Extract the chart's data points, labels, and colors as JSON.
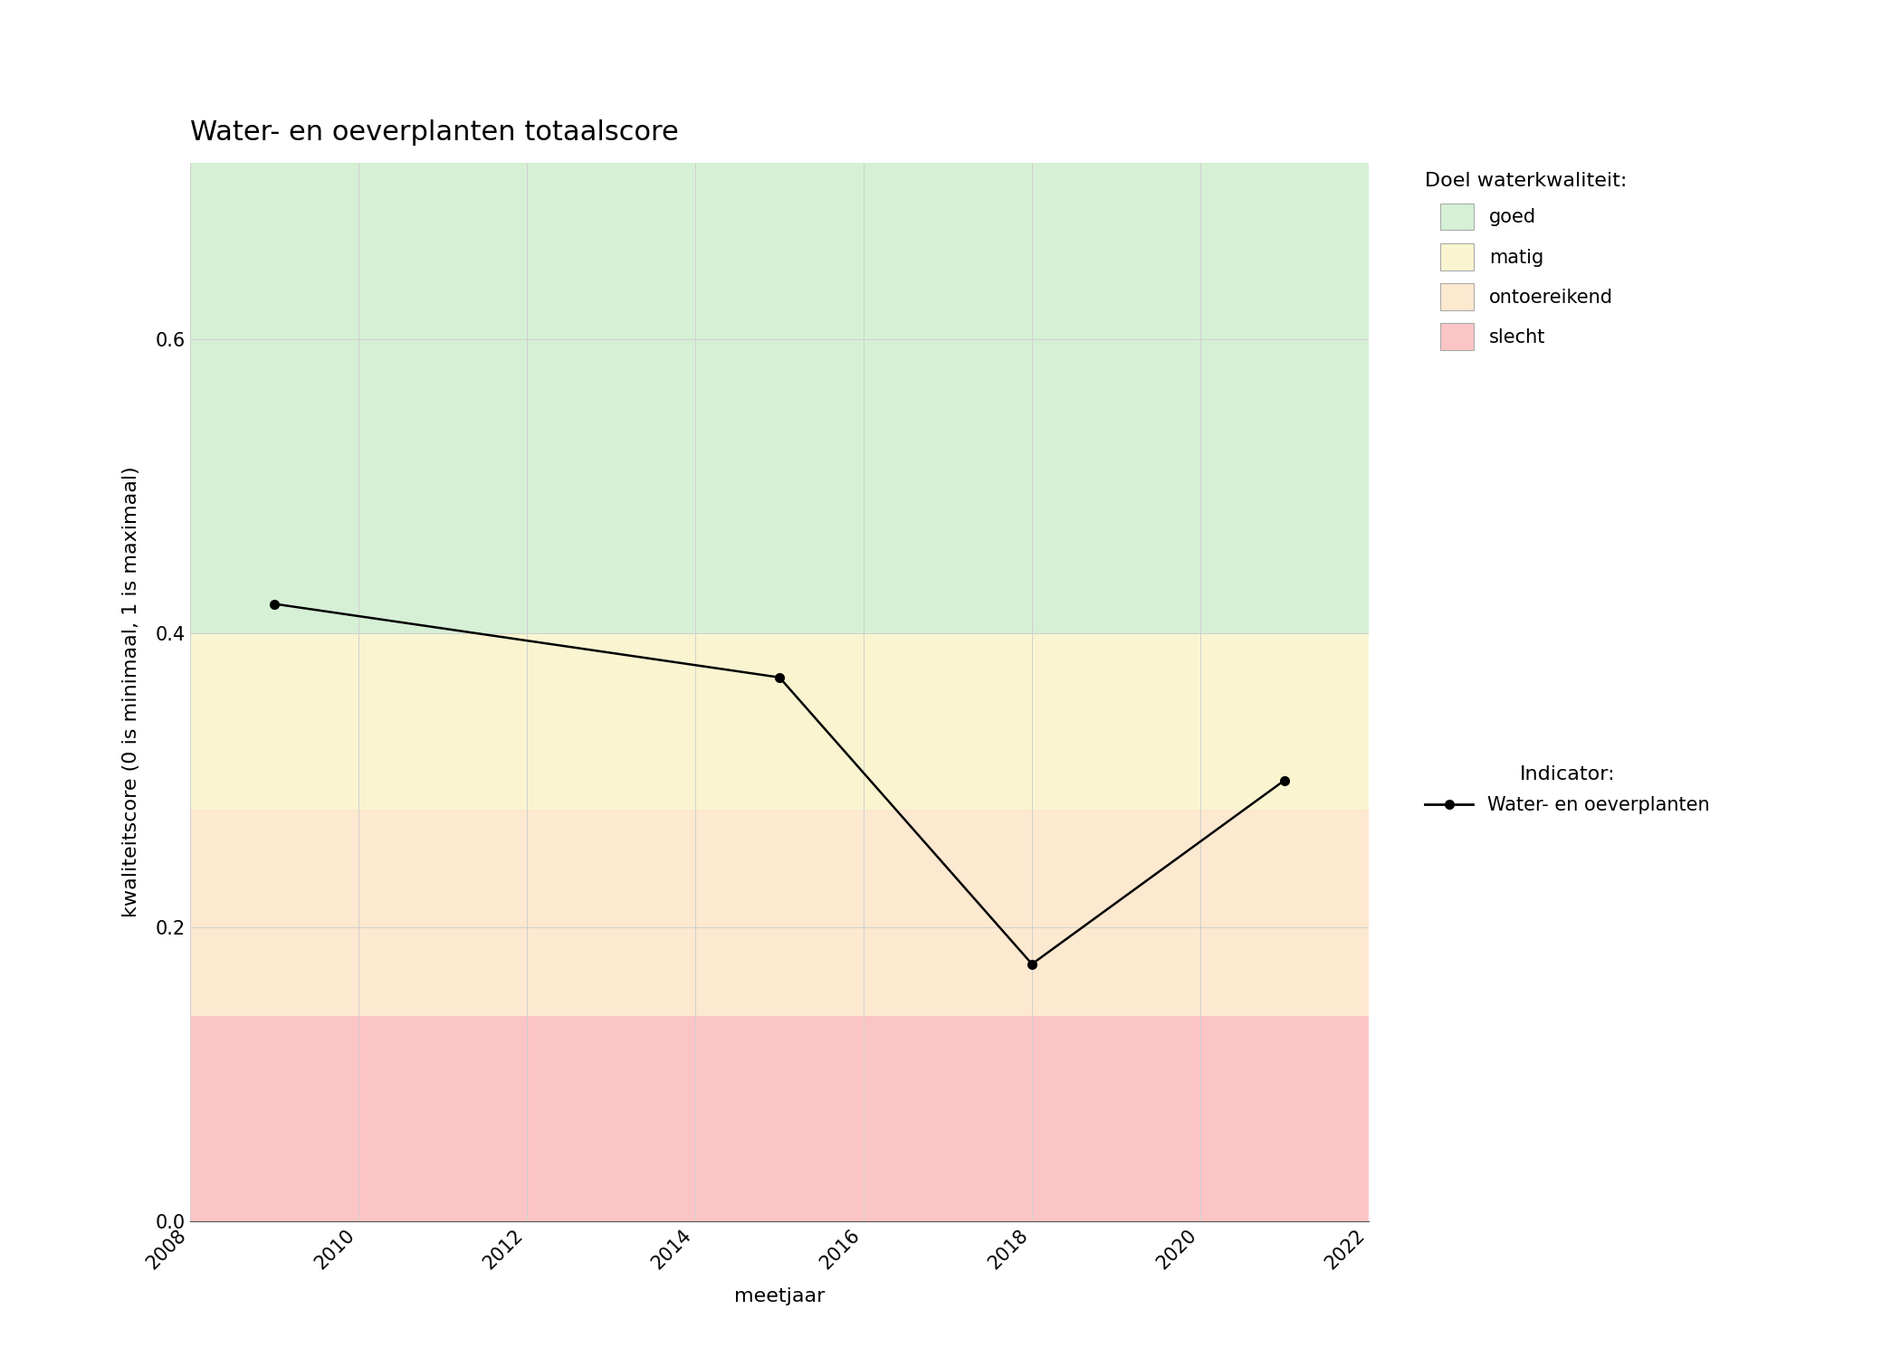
{
  "title": "Water- en oeverplanten totaalscore",
  "xlabel": "meetjaar",
  "ylabel": "kwaliteitscore (0 is minimaal, 1 is maximaal)",
  "xlim": [
    2008,
    2022
  ],
  "ylim": [
    0.0,
    0.72
  ],
  "xticks": [
    2008,
    2010,
    2012,
    2014,
    2016,
    2018,
    2020,
    2022
  ],
  "yticks": [
    0.0,
    0.2,
    0.4,
    0.6
  ],
  "years": [
    2009,
    2015,
    2018,
    2021
  ],
  "values": [
    0.42,
    0.37,
    0.175,
    0.3
  ],
  "line_color": "#000000",
  "marker": "o",
  "markersize": 7,
  "linewidth": 1.8,
  "zone_boundaries": [
    {
      "label": "slecht",
      "ymin": 0.0,
      "ymax": 0.14,
      "color": "#fcc5c5"
    },
    {
      "label": "ontoereikend",
      "ymin": 0.14,
      "ymax": 0.28,
      "color": "#fde8d0"
    },
    {
      "label": "matig",
      "ymin": 0.28,
      "ymax": 0.4,
      "color": "#faf5d0"
    },
    {
      "label": "goed",
      "ymin": 0.4,
      "ymax": 0.72,
      "color": "#d5f0d5"
    }
  ],
  "legend_title_doel": "Doel waterkwaliteit:",
  "legend_title_indicator": "Indicator:",
  "legend_indicator_label": "Water- en oeverplanten",
  "legend_colors": {
    "goed": "#d5f0d5",
    "matig": "#faf5d0",
    "ontoereikend": "#fde8d0",
    "slecht": "#fcc5c5"
  },
  "figure_bg": "#ffffff",
  "plot_bg": "#ffffff",
  "grid_color": "#d0d0d0",
  "grid_linewidth": 0.7,
  "title_fontsize": 22,
  "label_fontsize": 16,
  "tick_fontsize": 15,
  "legend_title_fontsize": 16,
  "legend_fontsize": 15
}
